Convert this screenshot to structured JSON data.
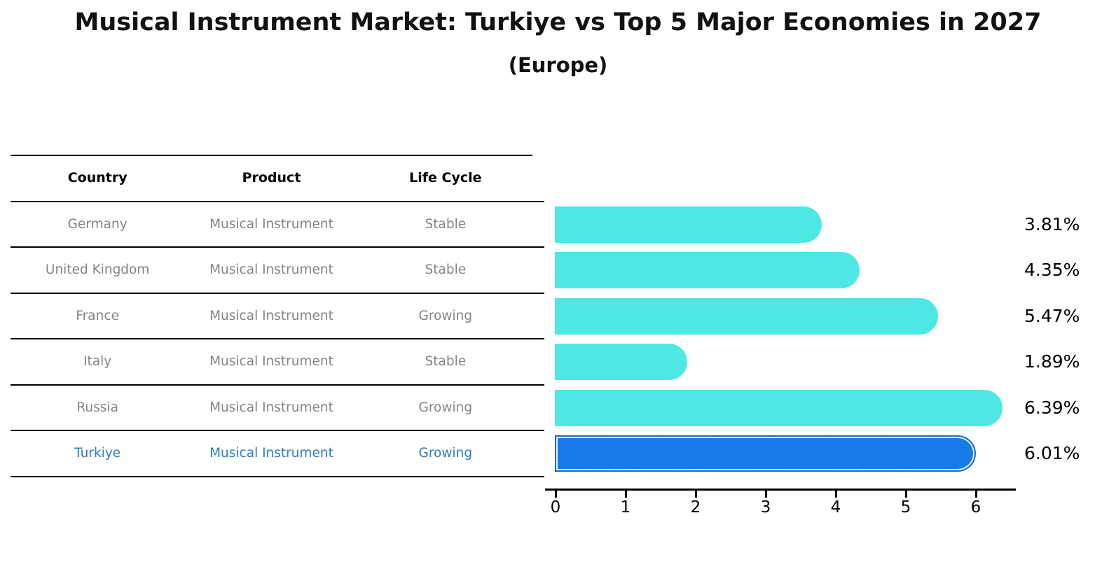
{
  "header": {
    "title": "Musical Instrument Market: Turkiye vs Top 5 Major Economies in 2027",
    "subtitle": "(Europe)"
  },
  "table": {
    "columns": [
      "Country",
      "Product",
      "Life Cycle"
    ],
    "rows": [
      {
        "country": "Germany",
        "product": "Musical Instrument",
        "life_cycle": "Stable",
        "highlight": false
      },
      {
        "country": "United Kingdom",
        "product": "Musical Instrument",
        "life_cycle": "Stable",
        "highlight": false
      },
      {
        "country": "France",
        "product": "Musical Instrument",
        "life_cycle": "Growing",
        "highlight": false
      },
      {
        "country": "Italy",
        "product": "Musical Instrument",
        "life_cycle": "Stable",
        "highlight": false
      },
      {
        "country": "Russia",
        "product": "Musical Instrument",
        "life_cycle": "Growing",
        "highlight": false
      },
      {
        "country": "Turkiye",
        "product": "Musical Instrument",
        "life_cycle": "Growing",
        "highlight": true
      }
    ]
  },
  "chart_data": {
    "type": "bar",
    "orientation": "horizontal",
    "title": "Musical Instrument Market: Turkiye vs Top 5 Major Economies in 2027",
    "subtitle": "(Europe)",
    "categories": [
      "Germany",
      "United Kingdom",
      "France",
      "Italy",
      "Russia",
      "Turkiye"
    ],
    "values": [
      3.81,
      4.35,
      5.47,
      1.89,
      6.39,
      6.01
    ],
    "value_labels": [
      "3.81%",
      "4.35%",
      "5.47%",
      "1.89%",
      "6.39%",
      "6.01%"
    ],
    "unit": "%",
    "x_ticks": [
      "0",
      "1",
      "2",
      "3",
      "4",
      "5",
      "6"
    ],
    "xlim": [
      0,
      6.6
    ],
    "grid": false,
    "legend": "none",
    "bar_color": "#4DE8E4",
    "highlight_color": "#1879E8",
    "highlight_index": 5
  },
  "colors": {
    "text_muted": "#848484",
    "highlight_text": "#2e7ebf",
    "axis_line": "#000000",
    "background": "#ffffff"
  }
}
